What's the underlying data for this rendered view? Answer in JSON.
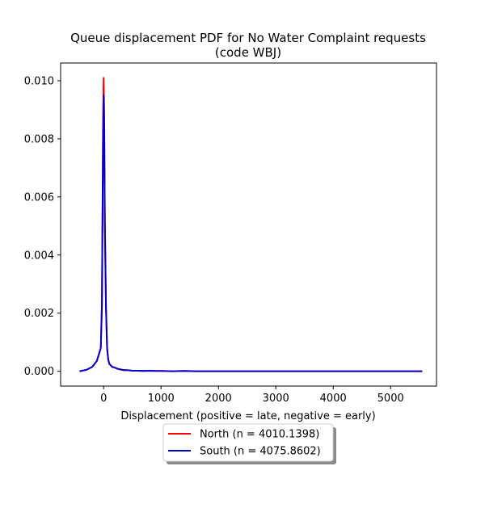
{
  "chart_data": {
    "type": "line",
    "title_line1": "Queue displacement PDF for No Water Complaint  requests",
    "title_line2": "(code WBJ)",
    "xlabel": "Displacement (positive = late, negative = early)",
    "ylabel": "",
    "xlim": [
      -750,
      5800
    ],
    "ylim": [
      -0.00051,
      0.01061
    ],
    "xticks": [
      0,
      1000,
      2000,
      3000,
      4000,
      5000
    ],
    "xtick_labels": [
      "0",
      "1000",
      "2000",
      "3000",
      "4000",
      "5000"
    ],
    "yticks": [
      0.0,
      0.002,
      0.004,
      0.006,
      0.008,
      0.01
    ],
    "ytick_labels": [
      "0.000",
      "0.002",
      "0.004",
      "0.006",
      "0.008",
      "0.010"
    ],
    "grid": false,
    "legend_placement": "below axes, center",
    "series": [
      {
        "name": "North (n = 4010.1398)",
        "color": "#ff0000",
        "x": [
          -420,
          -300,
          -200,
          -120,
          -80,
          -50,
          -30,
          -20,
          -10,
          0,
          10,
          20,
          40,
          60,
          80,
          100,
          150,
          200,
          250,
          300,
          350,
          400,
          500,
          600,
          700,
          800,
          900,
          1000,
          1200,
          1400,
          1600,
          2000,
          3000,
          4000,
          5000,
          5550
        ],
        "y": [
          0.0,
          5e-05,
          0.00015,
          0.00035,
          0.0006,
          0.0008,
          0.0023,
          0.0055,
          0.0087,
          0.0101,
          0.0088,
          0.0055,
          0.0023,
          0.0008,
          0.0004,
          0.00025,
          0.00015,
          0.00012,
          8e-05,
          6e-05,
          4e-05,
          4e-05,
          2e-05,
          2e-05,
          1e-05,
          2e-05,
          1e-05,
          1e-05,
          0.0,
          1e-05,
          0.0,
          0.0,
          0.0,
          0.0,
          0.0,
          0.0
        ]
      },
      {
        "name": "South (n = 4075.8602)",
        "color": "#0000cc",
        "x": [
          -420,
          -300,
          -200,
          -120,
          -80,
          -50,
          -30,
          -20,
          -10,
          0,
          10,
          20,
          40,
          60,
          80,
          100,
          150,
          200,
          250,
          300,
          350,
          400,
          500,
          600,
          700,
          800,
          900,
          1000,
          1200,
          1400,
          1600,
          2000,
          3000,
          4000,
          5000,
          5550
        ],
        "y": [
          0.0,
          5e-05,
          0.00015,
          0.00035,
          0.0006,
          0.0008,
          0.0023,
          0.0052,
          0.0082,
          0.0095,
          0.0083,
          0.0052,
          0.0022,
          0.0008,
          0.0004,
          0.00025,
          0.00015,
          0.00012,
          8e-05,
          6e-05,
          4e-05,
          4e-05,
          2e-05,
          2e-05,
          1e-05,
          2e-05,
          1e-05,
          1e-05,
          0.0,
          1e-05,
          0.0,
          0.0,
          0.0,
          0.0,
          0.0,
          0.0
        ]
      }
    ]
  }
}
